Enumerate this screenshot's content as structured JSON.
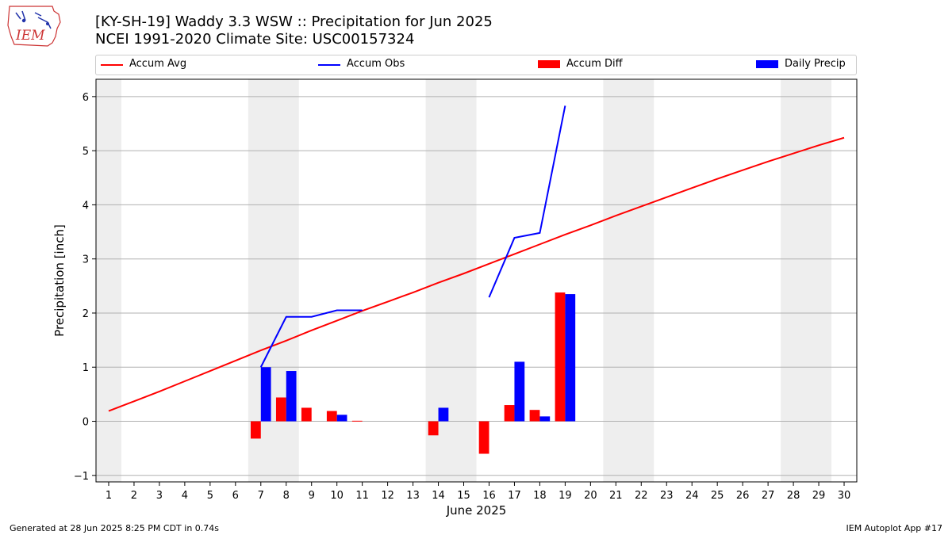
{
  "header": {
    "title_line1": "[KY-SH-19] Waddy 3.3 WSW :: Precipitation for Jun 2025",
    "title_line2": "NCEI 1991-2020 Climate Site: USC00157324",
    "logo_text": "IEM"
  },
  "footer": {
    "left": "Generated at 28 Jun 2025 8:25 PM CDT in 0.74s",
    "right": "IEM Autoplot App #17"
  },
  "colors": {
    "accum_avg": "#ff0000",
    "accum_obs": "#0000ff",
    "accum_diff": "#ff0000",
    "daily_precip": "#0000ff",
    "weekend_shade": "#eeeeee",
    "grid": "#b0b0b0"
  },
  "chart_data": {
    "type": "bar",
    "xlabel": "June 2025",
    "ylabel": "Precipitation [inch]",
    "x": [
      1,
      2,
      3,
      4,
      5,
      6,
      7,
      8,
      9,
      10,
      11,
      12,
      13,
      14,
      15,
      16,
      17,
      18,
      19,
      20,
      21,
      22,
      23,
      24,
      25,
      26,
      27,
      28,
      29,
      30
    ],
    "xlim": [
      0.5,
      30.5
    ],
    "ylim": [
      -1.12,
      6.32
    ],
    "yticks": [
      -1,
      0,
      1,
      2,
      3,
      4,
      5,
      6
    ],
    "grid": "horizontal",
    "legend_placement": "top",
    "shaded_days": [
      [
        1,
        1
      ],
      [
        7,
        8
      ],
      [
        14,
        15
      ],
      [
        21,
        22
      ],
      [
        28,
        29
      ]
    ],
    "series": [
      {
        "name": "Accum Avg",
        "kind": "line",
        "x": [
          1,
          2,
          3,
          4,
          5,
          6,
          7,
          8,
          9,
          10,
          11,
          12,
          13,
          14,
          15,
          16,
          17,
          18,
          19,
          20,
          21,
          22,
          23,
          24,
          25,
          26,
          27,
          28,
          29,
          30
        ],
        "values": [
          0.19,
          0.37,
          0.55,
          0.74,
          0.93,
          1.12,
          1.31,
          1.49,
          1.68,
          1.86,
          2.04,
          2.21,
          2.38,
          2.56,
          2.73,
          2.91,
          3.09,
          3.27,
          3.45,
          3.62,
          3.8,
          3.97,
          4.14,
          4.31,
          4.48,
          4.64,
          4.8,
          4.95,
          5.1,
          5.24
        ]
      },
      {
        "name": "Accum Obs",
        "kind": "line",
        "x": [
          7,
          8,
          9,
          10,
          11,
          16,
          17,
          18,
          19
        ],
        "values": [
          1.0,
          1.93,
          1.93,
          2.05,
          2.05,
          2.29,
          3.39,
          3.48,
          5.83
        ]
      },
      {
        "name": "Accum Diff",
        "kind": "bar",
        "offset": -0.2,
        "x": [
          7,
          8,
          9,
          10,
          11,
          14,
          16,
          17,
          18,
          19
        ],
        "values": [
          -0.32,
          0.44,
          0.25,
          0.19,
          0.01,
          -0.26,
          -0.6,
          0.3,
          0.21,
          2.38
        ]
      },
      {
        "name": "Daily Precip",
        "kind": "bar",
        "offset": 0.2,
        "x": [
          7,
          8,
          10,
          14,
          17,
          18,
          19
        ],
        "values": [
          1.0,
          0.93,
          0.12,
          0.25,
          1.1,
          0.09,
          2.35
        ]
      }
    ]
  }
}
